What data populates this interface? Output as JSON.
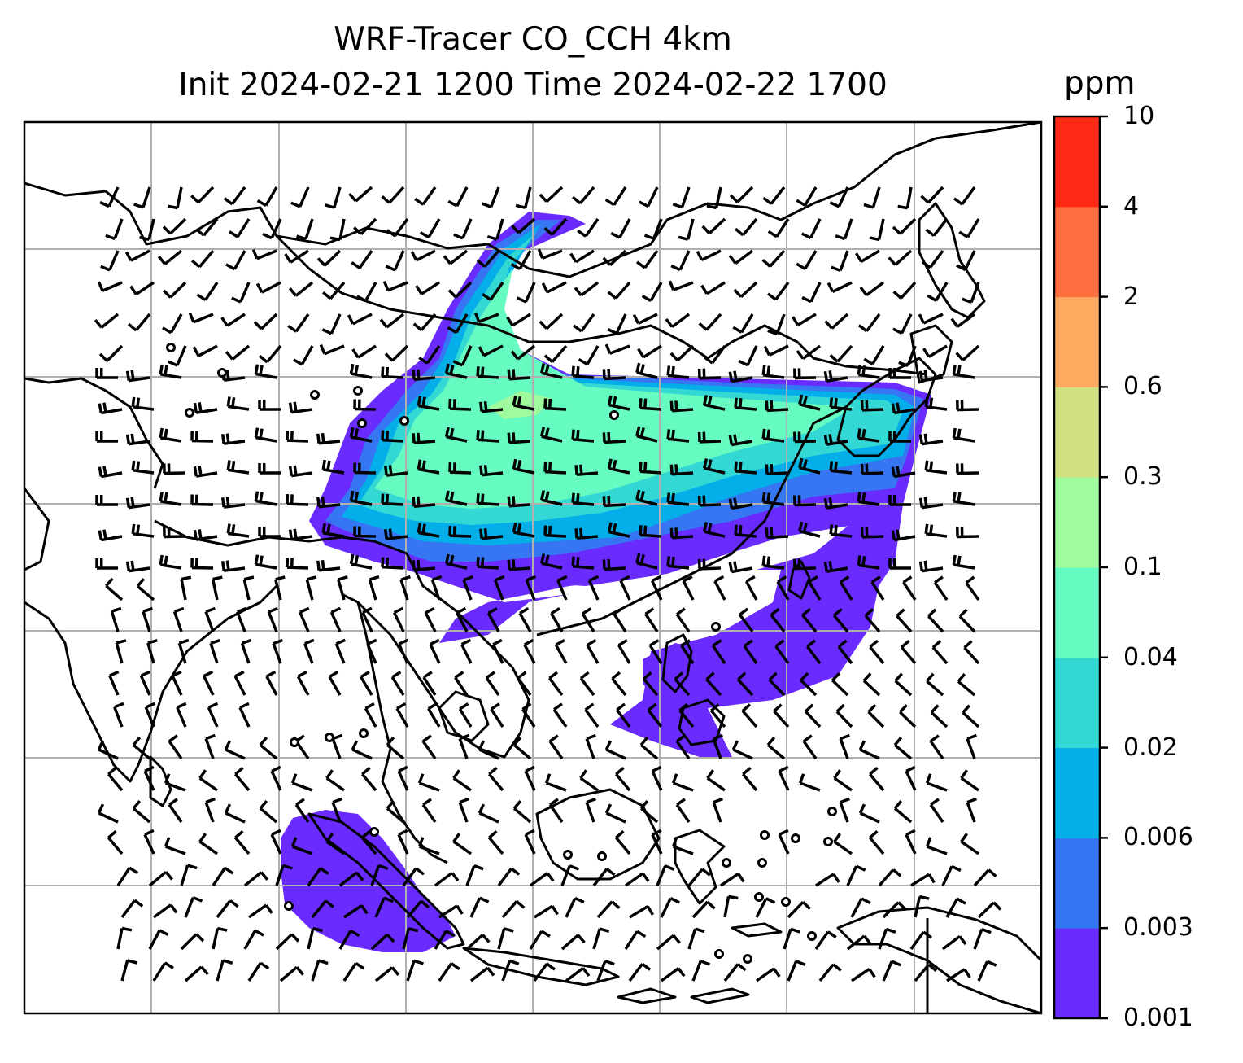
{
  "title": {
    "line1": "WRF-Tracer CO_CCH 4km",
    "line2": "Init 2024-02-21 1200 Time 2024-02-22 1700"
  },
  "colorbar": {
    "unit": "ppm",
    "ticks": [
      "0.001",
      "0.003",
      "0.006",
      "0.02",
      "0.04",
      "0.1",
      "0.3",
      "0.6",
      "2",
      "4",
      "10"
    ],
    "colors": [
      "#6a2bff",
      "#3676f3",
      "#03aee9",
      "#33d8d4",
      "#66fbc1",
      "#9ffb9d",
      "#d0e183",
      "#feab61",
      "#ff7041",
      "#ff2a15"
    ]
  },
  "map": {
    "gridlines": true,
    "gridline_color": "#b0b0b0",
    "coastline_color": "#000000",
    "wind_barb_color": "#000000",
    "plume_levels": [
      "0.001-0.003",
      "0.003-0.006",
      "0.006-0.02",
      "0.02-0.04",
      "0.04-0.1",
      "0.1-0.3"
    ]
  }
}
